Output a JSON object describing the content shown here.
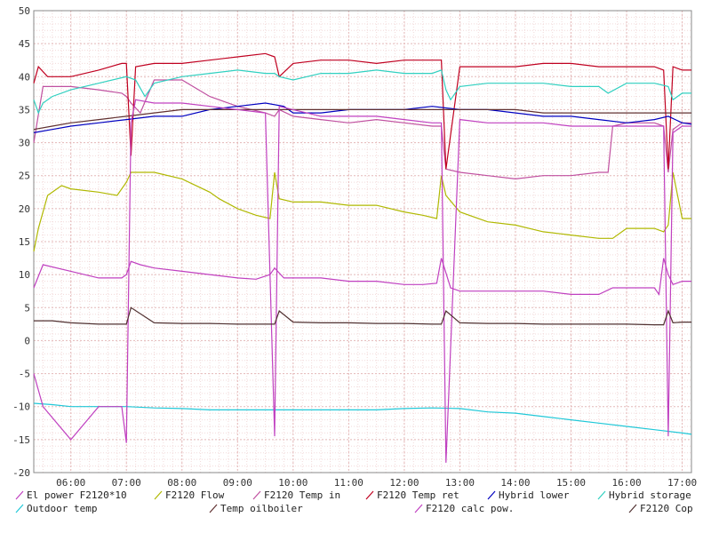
{
  "chart_data": {
    "type": "line",
    "title": "",
    "xlabel": "",
    "ylabel": "",
    "xlim": [
      "05:20",
      "17:10"
    ],
    "ylim": [
      -20,
      50
    ],
    "grid": true,
    "legend_placement": "bottom",
    "y_ticks": [
      "50",
      "45",
      "40",
      "35",
      "30",
      "25",
      "20",
      "15",
      "10",
      "5",
      "0",
      "-5",
      "-10",
      "-15",
      "-20"
    ],
    "x_ticks": [
      "06:00",
      "07:00",
      "08:00",
      "09:00",
      "10:00",
      "11:00",
      "12:00",
      "13:00",
      "14:00",
      "15:00",
      "16:00",
      "17:00"
    ],
    "series": [
      {
        "name": "El power F2120*10",
        "color": "#c040c0",
        "x": [
          "05:20",
          "05:30",
          "06:00",
          "06:30",
          "06:55",
          "07:00",
          "07:05",
          "07:15",
          "07:30",
          "08:00",
          "08:30",
          "09:00",
          "09:20",
          "09:35",
          "09:40",
          "09:50",
          "10:00",
          "10:30",
          "11:00",
          "11:30",
          "12:00",
          "12:20",
          "12:35",
          "12:40",
          "12:50",
          "13:00",
          "13:30",
          "14:00",
          "14:30",
          "15:00",
          "15:30",
          "15:45",
          "16:00",
          "16:30",
          "16:35",
          "16:40",
          "16:45",
          "16:50",
          "17:00",
          "17:10"
        ],
        "y": [
          8,
          11.5,
          10.5,
          9.5,
          9.5,
          10,
          12,
          11.5,
          11,
          10.5,
          10,
          9.5,
          9.3,
          10,
          11,
          9.5,
          9.5,
          9.5,
          9,
          9,
          8.5,
          8.5,
          8.7,
          12.5,
          8,
          7.5,
          7.5,
          7.5,
          7.5,
          7,
          7,
          8,
          8,
          8,
          7,
          12.5,
          10,
          8.5,
          9,
          9
        ]
      },
      {
        "name": "F2120 Flow",
        "color": "#b0b800",
        "x": [
          "05:20",
          "05:25",
          "05:35",
          "05:50",
          "06:00",
          "06:30",
          "06:50",
          "07:00",
          "07:05",
          "07:10",
          "07:30",
          "08:00",
          "08:30",
          "08:40",
          "09:00",
          "09:20",
          "09:35",
          "09:40",
          "09:45",
          "10:00",
          "10:30",
          "11:00",
          "11:30",
          "12:00",
          "12:20",
          "12:35",
          "12:40",
          "12:45",
          "13:00",
          "13:30",
          "14:00",
          "14:30",
          "15:00",
          "15:30",
          "15:45",
          "16:00",
          "16:30",
          "16:40",
          "16:45",
          "16:50",
          "17:00",
          "17:10"
        ],
        "y": [
          13.5,
          17,
          22,
          23.5,
          23,
          22.5,
          22,
          24,
          25.5,
          25.5,
          25.5,
          24.5,
          22.5,
          21.5,
          20,
          19,
          18.5,
          25.5,
          21.5,
          21,
          21,
          20.5,
          20.5,
          19.5,
          19,
          18.5,
          25,
          22,
          19.5,
          18,
          17.5,
          16.5,
          16,
          15.5,
          15.5,
          17,
          17,
          16.5,
          17.5,
          25.5,
          18.5,
          18.5
        ]
      },
      {
        "name": "F2120 Temp in",
        "color": "#c050a0",
        "x": [
          "05:20",
          "05:30",
          "06:00",
          "06:30",
          "06:55",
          "07:00",
          "07:05",
          "07:15",
          "07:30",
          "08:00",
          "08:30",
          "09:00",
          "09:30",
          "09:40",
          "09:45",
          "10:00",
          "10:30",
          "11:00",
          "11:30",
          "12:00",
          "12:30",
          "12:40",
          "12:45",
          "13:00",
          "13:30",
          "14:00",
          "14:30",
          "15:00",
          "15:30",
          "15:40",
          "15:45",
          "16:00",
          "16:30",
          "16:40",
          "16:45",
          "16:50",
          "17:00",
          "17:10"
        ],
        "y": [
          30,
          38.5,
          38.5,
          38,
          37.5,
          37,
          36,
          34.5,
          39.5,
          39.5,
          37,
          35.5,
          34.5,
          34,
          35,
          34,
          33.5,
          33,
          33.5,
          33,
          32.5,
          32.5,
          26,
          25.5,
          25,
          24.5,
          25,
          25,
          25.5,
          25.5,
          32.5,
          33,
          33,
          32.5,
          25.5,
          32,
          33,
          33
        ]
      },
      {
        "name": "F2120 Temp ret",
        "color": "#c00020",
        "x": [
          "05:20",
          "05:25",
          "05:35",
          "06:00",
          "06:30",
          "06:55",
          "07:00",
          "07:05",
          "07:10",
          "07:30",
          "08:00",
          "08:30",
          "09:00",
          "09:30",
          "09:40",
          "09:45",
          "10:00",
          "10:30",
          "11:00",
          "11:30",
          "12:00",
          "12:30",
          "12:40",
          "12:45",
          "13:00",
          "13:30",
          "14:00",
          "14:30",
          "15:00",
          "15:30",
          "16:00",
          "16:30",
          "16:40",
          "16:45",
          "16:50",
          "17:00",
          "17:10"
        ],
        "y": [
          39,
          41.5,
          40,
          40,
          41,
          42,
          42,
          28,
          41.5,
          42,
          42,
          42.5,
          43,
          43.5,
          43,
          40,
          42,
          42.5,
          42.5,
          42,
          42.5,
          42.5,
          42.5,
          26,
          41.5,
          41.5,
          41.5,
          42,
          42,
          41.5,
          41.5,
          41.5,
          41,
          26,
          41.5,
          41,
          41
        ]
      },
      {
        "name": "Hybrid lower",
        "color": "#0000c0",
        "x": [
          "05:20",
          "05:40",
          "06:00",
          "06:30",
          "07:00",
          "07:30",
          "08:00",
          "08:30",
          "09:00",
          "09:30",
          "09:50",
          "10:00",
          "10:30",
          "11:00",
          "11:30",
          "12:00",
          "12:30",
          "13:00",
          "13:30",
          "14:00",
          "14:30",
          "15:00",
          "15:30",
          "16:00",
          "16:30",
          "16:45",
          "17:00",
          "17:10"
        ],
        "y": [
          31.5,
          32,
          32.5,
          33,
          33.5,
          34,
          34,
          35,
          35.5,
          36,
          35.5,
          34.5,
          34.5,
          35,
          35,
          35,
          35.5,
          35,
          35,
          34.5,
          34,
          34,
          33.5,
          33,
          33.5,
          34,
          33,
          32.8
        ]
      },
      {
        "name": "Hybrid storage",
        "color": "#30d0c0",
        "x": [
          "05:20",
          "05:25",
          "05:30",
          "05:40",
          "06:00",
          "06:30",
          "07:00",
          "07:10",
          "07:20",
          "07:30",
          "08:00",
          "08:30",
          "09:00",
          "09:30",
          "09:40",
          "09:45",
          "10:00",
          "10:30",
          "11:00",
          "11:30",
          "12:00",
          "12:30",
          "12:40",
          "12:45",
          "12:50",
          "13:00",
          "13:30",
          "14:00",
          "14:30",
          "15:00",
          "15:30",
          "15:40",
          "16:00",
          "16:30",
          "16:45",
          "16:50",
          "17:00",
          "17:10"
        ],
        "y": [
          36.5,
          34.5,
          36,
          37,
          38,
          39,
          40,
          39.5,
          37,
          39,
          40,
          40.5,
          41,
          40.5,
          40.5,
          40,
          39.5,
          40.5,
          40.5,
          41,
          40.5,
          40.5,
          41,
          38,
          36.5,
          38.5,
          39,
          39,
          39,
          38.5,
          38.5,
          37.5,
          39,
          39,
          38.5,
          36.5,
          37.5,
          37.5
        ]
      },
      {
        "name": "Outdoor temp",
        "color": "#20c8d8",
        "x": [
          "05:20",
          "05:40",
          "06:00",
          "06:30",
          "07:00",
          "07:30",
          "08:00",
          "08:30",
          "09:00",
          "09:30",
          "10:00",
          "10:30",
          "11:00",
          "11:30",
          "12:00",
          "12:30",
          "13:00",
          "13:30",
          "14:00",
          "14:30",
          "15:00",
          "15:30",
          "16:00",
          "16:30",
          "17:00",
          "17:10"
        ],
        "y": [
          -9.5,
          -9.7,
          -10,
          -10,
          -10,
          -10.2,
          -10.3,
          -10.5,
          -10.5,
          -10.5,
          -10.5,
          -10.5,
          -10.5,
          -10.5,
          -10.3,
          -10.2,
          -10.3,
          -10.8,
          -11,
          -11.5,
          -12,
          -12.5,
          -13,
          -13.5,
          -14,
          -14.2
        ]
      },
      {
        "name": "Temp oilboiler",
        "color": "#603030",
        "x": [
          "05:20",
          "05:40",
          "06:00",
          "06:30",
          "07:00",
          "07:30",
          "08:00",
          "08:30",
          "09:00",
          "09:30",
          "10:00",
          "10:30",
          "11:00",
          "11:30",
          "12:00",
          "12:30",
          "13:00",
          "13:30",
          "14:00",
          "14:30",
          "15:00",
          "15:30",
          "16:00",
          "16:30",
          "17:00",
          "17:10"
        ],
        "y": [
          32,
          32.5,
          33,
          33.5,
          34,
          34.5,
          35,
          35,
          35,
          35,
          35,
          35,
          35,
          35,
          35,
          35,
          35,
          35,
          35,
          34.5,
          34.5,
          34.5,
          34.5,
          34.5,
          34.5,
          34.5
        ]
      },
      {
        "name": "F2120 calc pow.",
        "color": "#c040c0",
        "x": [
          "05:20",
          "05:30",
          "06:00",
          "06:30",
          "06:55",
          "07:00",
          "07:05",
          "07:10",
          "07:30",
          "08:00",
          "08:30",
          "09:00",
          "09:30",
          "09:40",
          "09:45",
          "10:00",
          "10:30",
          "11:00",
          "11:30",
          "12:00",
          "12:30",
          "12:40",
          "12:45",
          "13:00",
          "13:30",
          "14:00",
          "14:30",
          "15:00",
          "15:30",
          "16:00",
          "16:30",
          "16:40",
          "16:45",
          "16:50",
          "17:00",
          "17:10"
        ],
        "y": [
          -5,
          -10,
          -15,
          -10,
          -10,
          -15.5,
          33,
          36.5,
          36,
          36,
          35.5,
          35,
          34.5,
          -14.5,
          35.5,
          35,
          34,
          34,
          34,
          33.5,
          33,
          33,
          -18.5,
          33.5,
          33,
          33,
          33,
          32.5,
          32.5,
          32.5,
          32.5,
          32.5,
          -14.5,
          31.5,
          32.5,
          32.5
        ]
      },
      {
        "name": "F2120 Cop",
        "color": "#503030",
        "x": [
          "05:20",
          "05:40",
          "06:00",
          "06:30",
          "06:55",
          "07:00",
          "07:05",
          "07:30",
          "08:00",
          "08:30",
          "09:00",
          "09:30",
          "09:40",
          "09:45",
          "10:00",
          "10:30",
          "11:00",
          "11:30",
          "12:00",
          "12:30",
          "12:40",
          "12:45",
          "13:00",
          "13:30",
          "14:00",
          "14:30",
          "15:00",
          "15:30",
          "16:00",
          "16:30",
          "16:40",
          "16:45",
          "16:50",
          "17:00",
          "17:10"
        ],
        "y": [
          3,
          3,
          2.7,
          2.5,
          2.5,
          2.5,
          5,
          2.7,
          2.6,
          2.6,
          2.5,
          2.5,
          2.5,
          4.5,
          2.8,
          2.7,
          2.7,
          2.6,
          2.6,
          2.5,
          2.5,
          4.5,
          2.7,
          2.6,
          2.6,
          2.5,
          2.5,
          2.5,
          2.5,
          2.4,
          2.4,
          4.5,
          2.7,
          2.8,
          2.8
        ]
      }
    ],
    "legend": {
      "rows": [
        [
          "El power F2120*10",
          "F2120 Flow",
          "F2120 Temp in",
          "F2120 Temp ret",
          "Hybrid lower",
          "Hybrid storage"
        ],
        [
          "Outdoor temp",
          "Temp oilboiler",
          "F2120 calc pow.",
          "F2120 Cop"
        ]
      ]
    }
  }
}
